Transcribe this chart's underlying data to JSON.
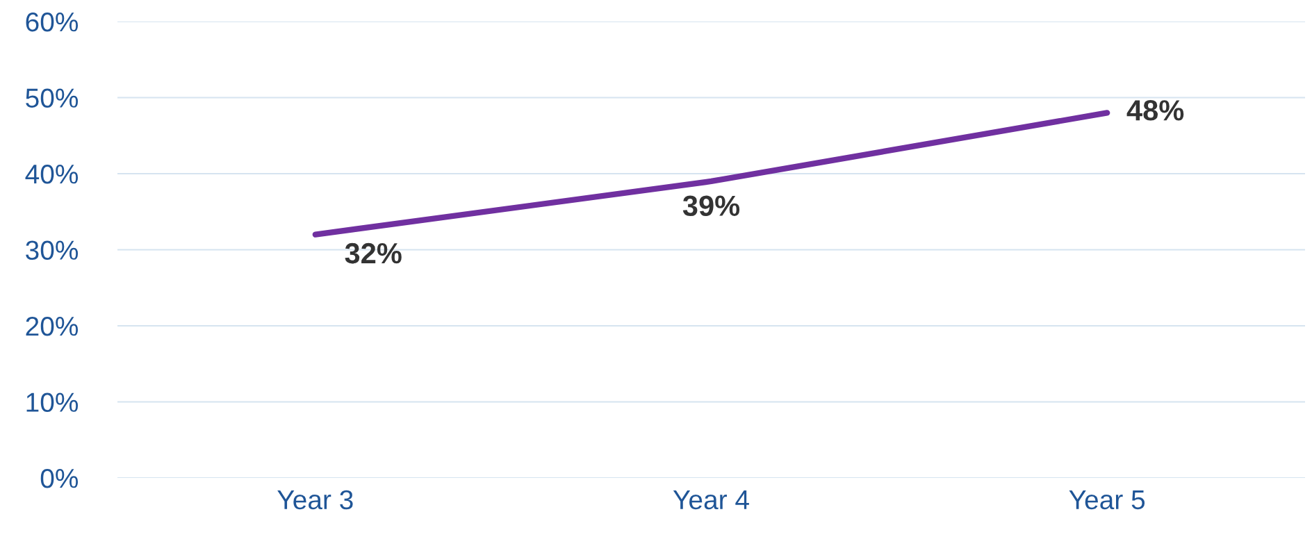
{
  "chart_data": {
    "type": "line",
    "categories": [
      "Year 3",
      "Year 4",
      "Year 5"
    ],
    "series": [
      {
        "color": "#7030a0",
        "values": [
          32,
          39,
          48
        ],
        "value_labels": [
          "32%",
          "39%",
          "48%"
        ]
      }
    ],
    "ylim": [
      0,
      60
    ],
    "yticks": [
      {
        "value": 0,
        "label": "0%"
      },
      {
        "value": 10,
        "label": "10%"
      },
      {
        "value": 20,
        "label": "20%"
      },
      {
        "value": 30,
        "label": "30%"
      },
      {
        "value": 40,
        "label": "40%"
      },
      {
        "value": 50,
        "label": "50%"
      },
      {
        "value": 60,
        "label": "60%"
      }
    ],
    "grid": "y",
    "legend": false,
    "marker": "none",
    "line_style": "solid"
  }
}
